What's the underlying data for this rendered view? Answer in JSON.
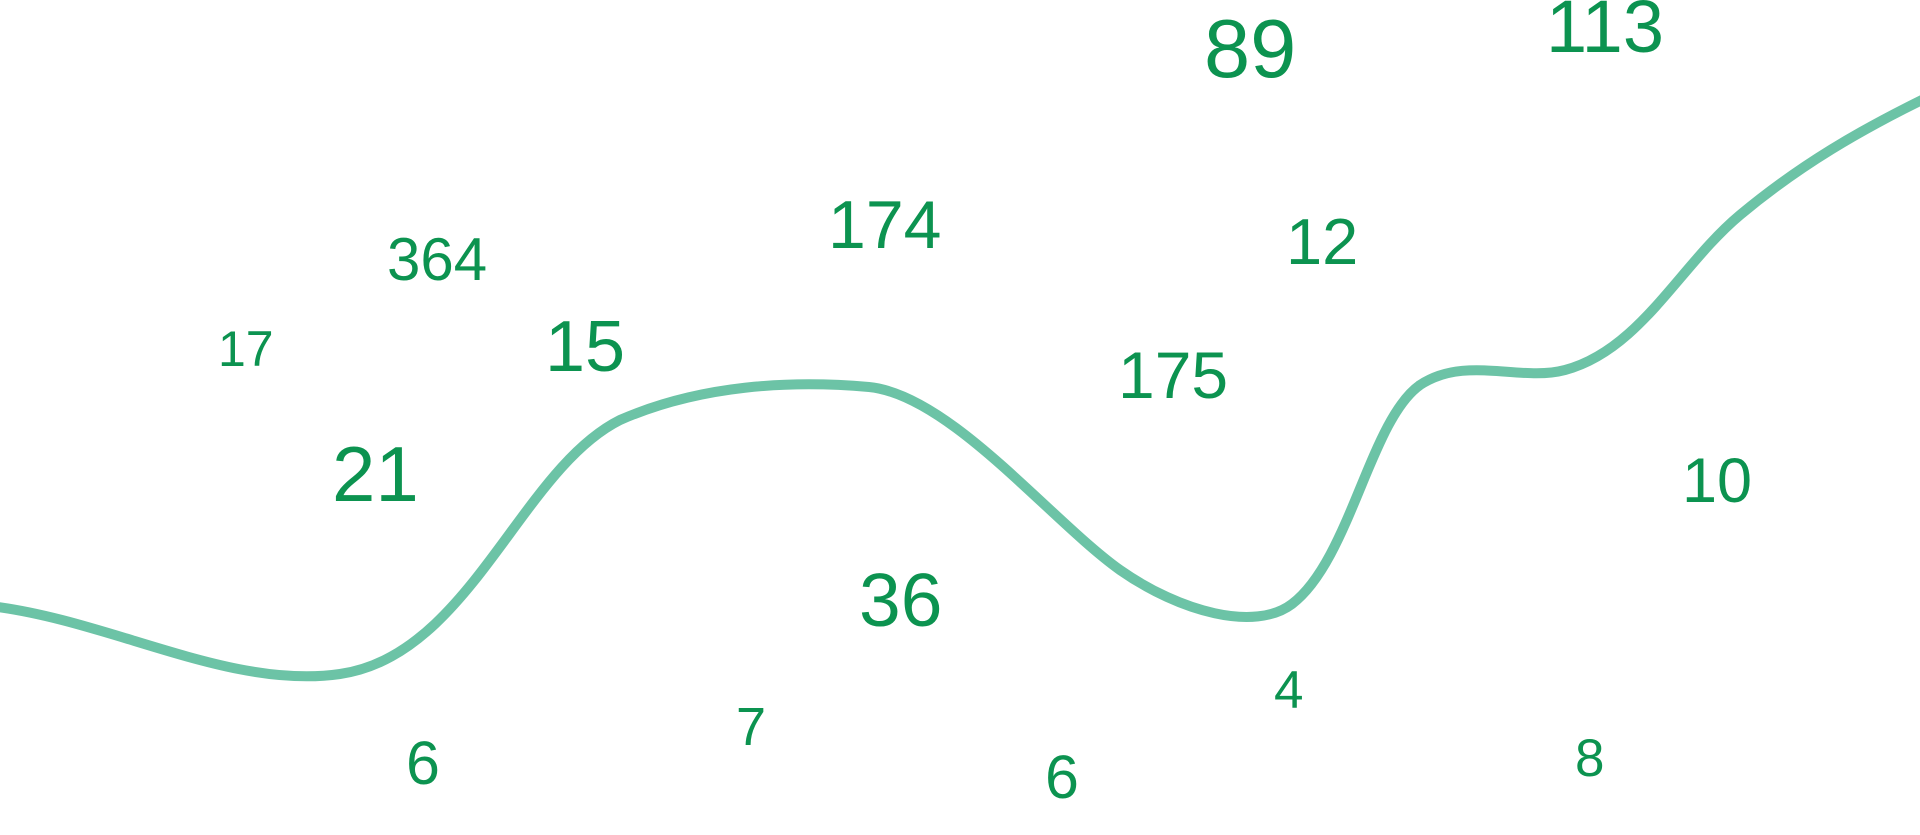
{
  "colors": {
    "number": "#0c9350",
    "curve": "#6cc3a6",
    "background": "#ffffff"
  },
  "numbers": [
    "89",
    "113",
    "174",
    "12",
    "364",
    "17",
    "15",
    "175",
    "21",
    "10",
    "36",
    "4",
    "6",
    "7",
    "6",
    "8"
  ]
}
